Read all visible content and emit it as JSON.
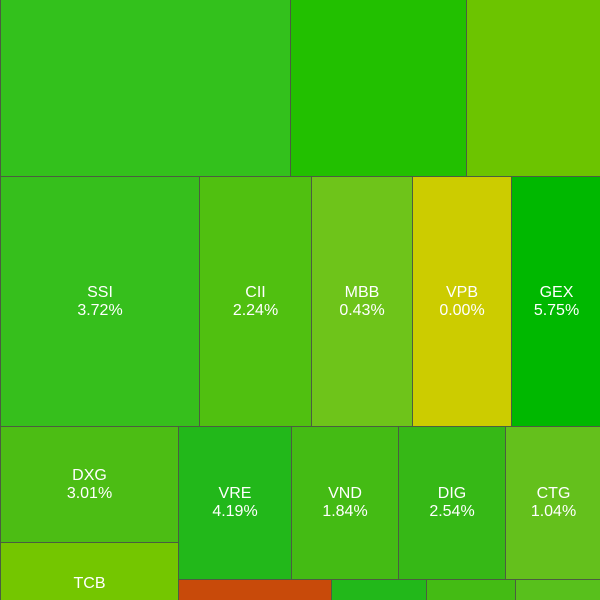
{
  "tiles": [
    {
      "label": "SSI",
      "change": "3.72%"
    },
    {
      "label": "CII",
      "change": "2.24%"
    },
    {
      "label": "MBB",
      "change": "0.43%"
    },
    {
      "label": "VPB",
      "change": "0.00%"
    },
    {
      "label": "GEX",
      "change": "5.75%"
    },
    {
      "label": "DXG",
      "change": "3.01%"
    },
    {
      "label": "VRE",
      "change": "4.19%"
    },
    {
      "label": "VND",
      "change": "1.84%"
    },
    {
      "label": "DIG",
      "change": "2.54%"
    },
    {
      "label": "CTG",
      "change": "1.04%"
    },
    {
      "label": "TCB"
    }
  ]
}
